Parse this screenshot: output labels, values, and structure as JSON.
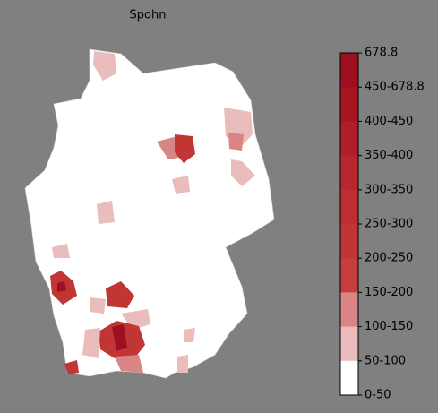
{
  "title": "Spohn",
  "legend": {
    "labels": [
      "678.8",
      "450-678.8",
      "400-450",
      "350-400",
      "300-350",
      "250-300",
      "200-250",
      "150-200",
      "100-150",
      "50-100",
      "0-50"
    ],
    "colors": [
      "#9e0f22",
      "#a8151f",
      "#b01f29",
      "#b8272d",
      "#bd2d32",
      "#c13535",
      "#c63d3d",
      "#d98585",
      "#eabcbc",
      "#ffffff"
    ]
  }
}
